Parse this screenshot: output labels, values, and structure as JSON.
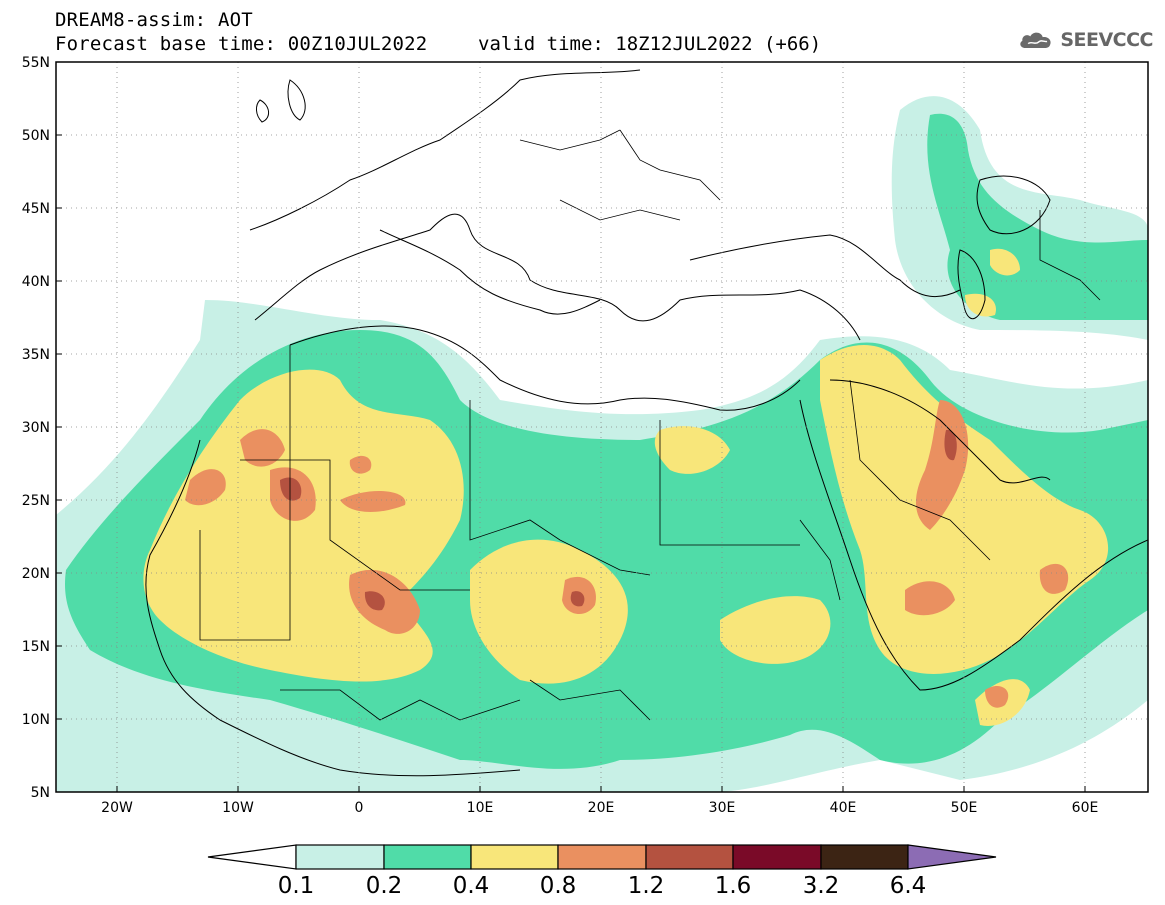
{
  "header": {
    "title": "DREAM8-assim: AOT",
    "base_time": "Forecast base time: 00Z10JUL2022",
    "valid_time": "valid time: 18Z12JUL2022 (+66)"
  },
  "logo": {
    "icon": "cloud-icon",
    "text": "SEEVCCC"
  },
  "map": {
    "lon_range": [
      -25,
      65
    ],
    "lat_range": [
      5,
      55
    ],
    "lat_ticks": [
      "55N",
      "50N",
      "45N",
      "40N",
      "35N",
      "30N",
      "25N",
      "20N",
      "15N",
      "10N",
      "5N"
    ],
    "lon_ticks": [
      "20W",
      "10W",
      "0",
      "10E",
      "20E",
      "30E",
      "40E",
      "50E",
      "60E"
    ],
    "grid": "dotted"
  },
  "colorbar": {
    "colors": [
      "#ffffff",
      "#c8f0e6",
      "#50dca8",
      "#f8e67a",
      "#ea9060",
      "#b45240",
      "#7a0a28",
      "#3c2414",
      "#8c6cb4"
    ],
    "labels": [
      "0.1",
      "0.2",
      "0.4",
      "0.8",
      "1.2",
      "1.6",
      "3.2",
      "6.4"
    ]
  }
}
